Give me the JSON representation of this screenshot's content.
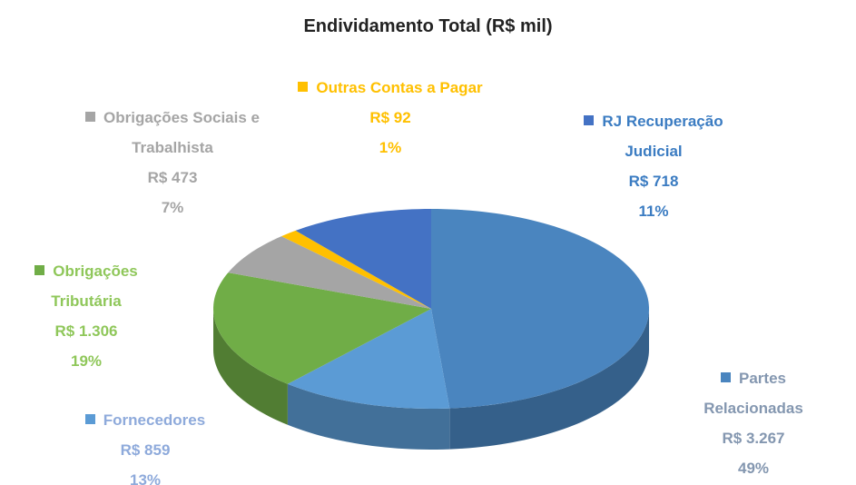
{
  "chart_data": {
    "type": "pie",
    "title": "Endividamento Total (R$ mil)",
    "categories": [
      "Partes Relacionadas",
      "Fornecedores",
      "Obrigações Tributária",
      "Obrigações Sociais e Trabalhista",
      "Outras Contas a Pagar",
      "RJ Recuperação Judicial"
    ],
    "values": [
      3267,
      859,
      1306,
      473,
      92,
      718
    ],
    "value_labels": [
      "R$ 3.267",
      "R$ 859",
      "R$ 1.306",
      "R$ 473",
      "R$ 92",
      "R$ 718"
    ],
    "percentages": [
      49,
      13,
      19,
      7,
      1,
      11
    ],
    "percentage_labels": [
      "49%",
      "13%",
      "19%",
      "7%",
      "1%",
      "11%"
    ],
    "colors": [
      "#4a85bf",
      "#5b9bd5",
      "#70ad47",
      "#a5a5a5",
      "#ffc000",
      "#4472c4"
    ],
    "label_colors": [
      "#8497b0",
      "#8eaadb",
      "#8fc75a",
      "#a5a5a5",
      "#ffc000",
      "#3b7cc2"
    ]
  }
}
